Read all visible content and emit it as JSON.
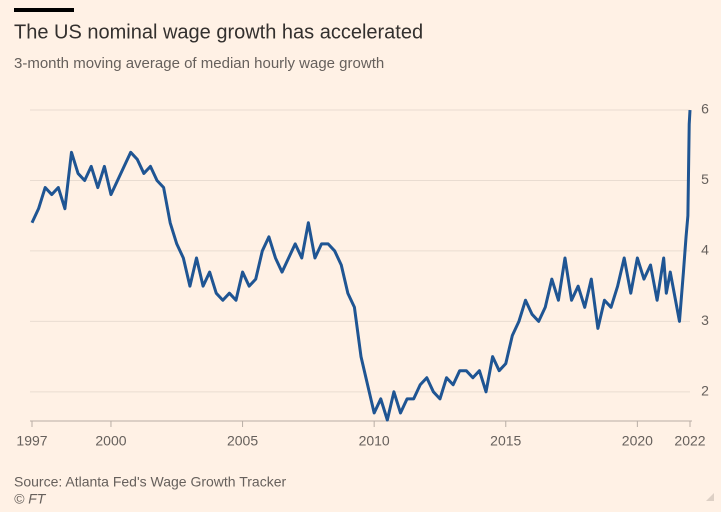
{
  "chart_data": {
    "type": "line",
    "title": "The US nominal wage growth has accelerated",
    "subtitle": "3-month moving average of median hourly wage growth",
    "source": "Source: Atlanta Fed's Wage Growth Tracker",
    "credit": "© FT",
    "x": [
      1997.0,
      1997.25,
      1997.5,
      1997.75,
      1998.0,
      1998.25,
      1998.5,
      1998.75,
      1999.0,
      1999.25,
      1999.5,
      1999.75,
      2000.0,
      2000.25,
      2000.5,
      2000.75,
      2001.0,
      2001.25,
      2001.5,
      2001.75,
      2002.0,
      2002.25,
      2002.5,
      2002.75,
      2003.0,
      2003.25,
      2003.5,
      2003.75,
      2004.0,
      2004.25,
      2004.5,
      2004.75,
      2005.0,
      2005.25,
      2005.5,
      2005.75,
      2006.0,
      2006.25,
      2006.5,
      2006.75,
      2007.0,
      2007.25,
      2007.5,
      2007.75,
      2008.0,
      2008.25,
      2008.5,
      2008.75,
      2009.0,
      2009.25,
      2009.5,
      2009.75,
      2010.0,
      2010.25,
      2010.5,
      2010.75,
      2011.0,
      2011.25,
      2011.5,
      2011.75,
      2012.0,
      2012.25,
      2012.5,
      2012.75,
      2013.0,
      2013.25,
      2013.5,
      2013.75,
      2014.0,
      2014.25,
      2014.5,
      2014.75,
      2015.0,
      2015.25,
      2015.5,
      2015.75,
      2016.0,
      2016.25,
      2016.5,
      2016.75,
      2017.0,
      2017.25,
      2017.5,
      2017.75,
      2018.0,
      2018.25,
      2018.5,
      2018.75,
      2019.0,
      2019.25,
      2019.5,
      2019.75,
      2020.0,
      2020.25,
      2020.5,
      2020.75,
      2021.0,
      2021.1,
      2021.25,
      2021.4,
      2021.6,
      2021.75,
      2021.85,
      2021.92,
      2021.97,
      2022.0
    ],
    "series": [
      {
        "name": "Median hourly wage growth",
        "color": "#1f5593",
        "values": [
          4.4,
          4.6,
          4.9,
          4.8,
          4.9,
          4.6,
          5.4,
          5.1,
          5.0,
          5.2,
          4.9,
          5.2,
          4.8,
          5.0,
          5.2,
          5.4,
          5.3,
          5.1,
          5.2,
          5.0,
          4.9,
          4.4,
          4.1,
          3.9,
          3.5,
          3.9,
          3.5,
          3.7,
          3.4,
          3.3,
          3.4,
          3.3,
          3.7,
          3.5,
          3.6,
          4.0,
          4.2,
          3.9,
          3.7,
          3.9,
          4.1,
          3.9,
          4.4,
          3.9,
          4.1,
          4.1,
          4.0,
          3.8,
          3.4,
          3.2,
          2.5,
          2.1,
          1.7,
          1.9,
          1.6,
          2.0,
          1.7,
          1.9,
          1.9,
          2.1,
          2.2,
          2.0,
          1.9,
          2.2,
          2.1,
          2.3,
          2.3,
          2.2,
          2.3,
          2.0,
          2.5,
          2.3,
          2.4,
          2.8,
          3.0,
          3.3,
          3.1,
          3.0,
          3.2,
          3.6,
          3.3,
          3.9,
          3.3,
          3.5,
          3.2,
          3.6,
          2.9,
          3.3,
          3.2,
          3.5,
          3.9,
          3.4,
          3.9,
          3.6,
          3.8,
          3.3,
          3.9,
          3.4,
          3.7,
          3.4,
          3.0,
          3.7,
          4.2,
          4.5,
          5.8,
          6.0
        ]
      }
    ],
    "xlim": [
      1997,
      2022
    ],
    "xticks": [
      1997,
      2000,
      2005,
      2010,
      2015,
      2020,
      2022
    ],
    "ylim": [
      1.6,
      6.1
    ],
    "yticks": [
      2,
      3,
      4,
      5,
      6
    ],
    "grid": true
  }
}
